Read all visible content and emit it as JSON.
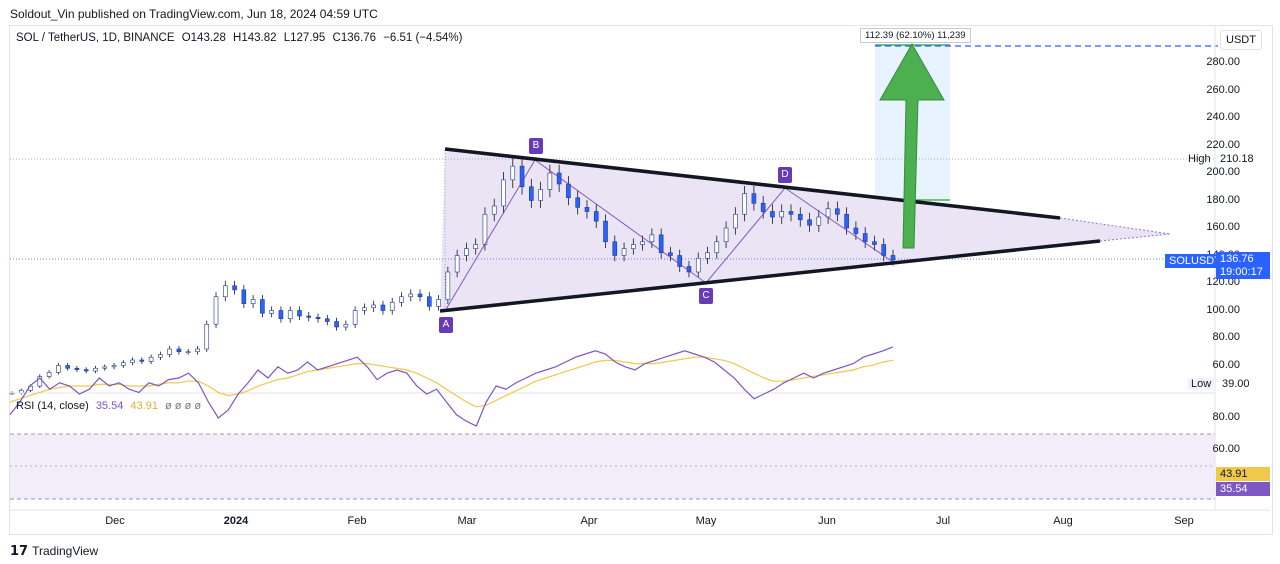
{
  "publisher": "Soldout_Vin published on TradingView.com, Jun 18, 2024 04:59 UTC",
  "header": {
    "pair": "SOL / TetherUS, 1D, BINANCE",
    "open": "O143.28",
    "high": "H143.82",
    "low": "L127.95",
    "close": "C136.76",
    "change": "−6.51 (−4.54%)"
  },
  "currency_button": "USDT",
  "measure_label": "112.39 (62.10%) 11,239",
  "price_axis": [
    "280.00",
    "260.00",
    "240.00",
    "220.00",
    "200.00",
    "180.00",
    "160.00",
    "140.00",
    "120.00",
    "100.00",
    "80.00",
    "60.00"
  ],
  "high_label": "High",
  "high_value": "210.18",
  "low_label": "Low",
  "low_value": "39.00",
  "symbol_tag": "SOLUSDT",
  "last_price": "136.76",
  "countdown": "19:00:17",
  "rsi": {
    "legend_name": "RSI (14, close)",
    "value": "35.54",
    "ma": "43.91",
    "symbols": "ø ø ø ø",
    "axis": [
      "80.00",
      "60.00"
    ],
    "rsi_box": "35.54",
    "ma_box": "43.91"
  },
  "time_axis": [
    {
      "label": "Dec",
      "bold": false
    },
    {
      "label": "2024",
      "bold": true
    },
    {
      "label": "Feb",
      "bold": false
    },
    {
      "label": "Mar",
      "bold": false
    },
    {
      "label": "Apr",
      "bold": false
    },
    {
      "label": "May",
      "bold": false
    },
    {
      "label": "Jun",
      "bold": false
    },
    {
      "label": "Jul",
      "bold": false
    },
    {
      "label": "Aug",
      "bold": false
    },
    {
      "label": "Sep",
      "bold": false
    }
  ],
  "points": [
    "A",
    "B",
    "C",
    "D"
  ],
  "colors": {
    "up": "#26a69a",
    "down": "#ef5350",
    "candle": "#2962ff",
    "rsi": "#7e57c2",
    "rsi_ma": "#f0c84a",
    "arrow": "#4caf50",
    "pattern": "#673ab7",
    "dashed": "#2962ff",
    "price_tag": "#2962ff"
  },
  "tv_logo": "TradingView",
  "chart_data": {
    "type": "candlestick",
    "title": "SOL / TetherUS, 1D, BINANCE",
    "xlabel": "",
    "ylabel": "",
    "ylim": [
      40,
      290
    ],
    "closes": [
      40,
      42,
      45,
      52,
      55,
      60,
      58,
      57,
      56,
      58,
      59,
      60,
      62,
      64,
      63,
      66,
      68,
      72,
      70,
      70,
      72,
      90,
      110,
      118,
      115,
      105,
      108,
      98,
      100,
      94,
      100,
      96,
      95,
      94,
      92,
      88,
      90,
      100,
      102,
      104,
      100,
      106,
      110,
      112,
      110,
      103,
      108,
      128,
      140,
      145,
      148,
      170,
      176,
      195,
      205,
      190,
      180,
      188,
      200,
      192,
      182,
      175,
      172,
      165,
      150,
      140,
      145,
      148,
      150,
      155,
      142,
      140,
      132,
      128,
      138,
      142,
      150,
      160,
      170,
      185,
      178,
      172,
      168,
      172,
      170,
      166,
      162,
      168,
      174,
      170,
      160,
      156,
      150,
      148,
      140,
      136.76
    ],
    "annotations": {
      "A": 98,
      "B": 210,
      "C": 122,
      "D": 188
    },
    "rsi_series": [
      78,
      70,
      60,
      55,
      62,
      58,
      60,
      65,
      62,
      55,
      60,
      58,
      62,
      64,
      58,
      60,
      56,
      55,
      52,
      58,
      70,
      80,
      75,
      65,
      58,
      50,
      55,
      48,
      52,
      50,
      45,
      50,
      48,
      46,
      44,
      42,
      48,
      56,
      52,
      50,
      52,
      60,
      65,
      62,
      70,
      78,
      82,
      85,
      70,
      60,
      62,
      58,
      55,
      52,
      50,
      48,
      45,
      42,
      40,
      38,
      40,
      45,
      48,
      50,
      46,
      44,
      42,
      40,
      38,
      40,
      42,
      45,
      50,
      55,
      62,
      68,
      65,
      62,
      58,
      55,
      52,
      55,
      52,
      50,
      48,
      46,
      42,
      40,
      38,
      35.54
    ],
    "rsi_ma_series": [
      70,
      68,
      66,
      64,
      62,
      61,
      60,
      60,
      60,
      59,
      59,
      59,
      60,
      60,
      60,
      59,
      58,
      58,
      57,
      57,
      60,
      64,
      66,
      65,
      63,
      60,
      58,
      56,
      55,
      53,
      51,
      50,
      49,
      48,
      47,
      46,
      46,
      47,
      48,
      49,
      50,
      52,
      55,
      58,
      62,
      66,
      70,
      73,
      72,
      69,
      66,
      63,
      60,
      57,
      55,
      53,
      51,
      49,
      47,
      45,
      44,
      44,
      45,
      46,
      46,
      46,
      45,
      44,
      43,
      42,
      42,
      43,
      44,
      46,
      49,
      52,
      55,
      57,
      57,
      56,
      55,
      54,
      53,
      52,
      51,
      50,
      48,
      47,
      45,
      43.91
    ]
  }
}
